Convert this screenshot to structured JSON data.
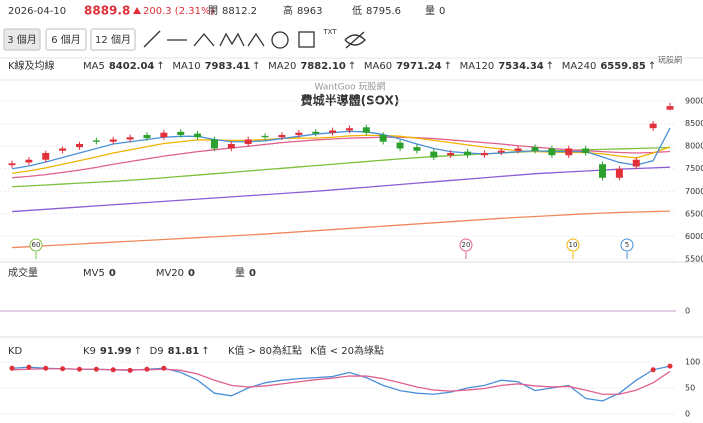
{
  "header": {
    "date": "2026-04-10",
    "price": "8889.8",
    "change": "200.3 (2.31%)",
    "open_label": "開",
    "open": "8812.2",
    "high_label": "高",
    "high": "8963",
    "low_label": "低",
    "low": "8795.6",
    "volume_label": "量",
    "volume": "0"
  },
  "toolbar": {
    "ranges": [
      "3 個月",
      "6 個月",
      "12 個月"
    ],
    "txt": "TXT",
    "logo": "玩股網"
  },
  "chart_data": [
    {
      "type": "candlestick",
      "legend_title": "K線及均線",
      "watermark": "WantGoo 玩股網",
      "title": "費城半導體(SOX)",
      "open": [
        7580,
        7640,
        7700,
        7900,
        7980,
        8130,
        8100,
        8150,
        8250,
        8200,
        8320,
        8280,
        8150,
        7950,
        8050,
        8230,
        8200,
        8250,
        8320,
        8300,
        8350,
        8420,
        8250,
        8080,
        7980,
        7880,
        7800,
        7880,
        7800,
        7860,
        7900,
        7980,
        7950,
        7800,
        7950,
        7600,
        7300,
        7550,
        8400,
        8812.2
      ],
      "high": [
        7680,
        7760,
        7900,
        8000,
        8100,
        8190,
        8210,
        8260,
        8310,
        8360,
        8380,
        8340,
        8210,
        8110,
        8210,
        8290,
        8310,
        8360,
        8380,
        8410,
        8460,
        8480,
        8310,
        8140,
        8040,
        7940,
        7910,
        7940,
        7910,
        7960,
        8010,
        8040,
        8010,
        8010,
        8010,
        7660,
        7560,
        7760,
        8560,
        8963
      ],
      "low": [
        7520,
        7580,
        7640,
        7840,
        7920,
        8040,
        8040,
        8090,
        8120,
        8140,
        8190,
        8140,
        7890,
        7890,
        7990,
        8140,
        8140,
        8190,
        8220,
        8240,
        8290,
        8240,
        8040,
        7890,
        7840,
        7690,
        7740,
        7740,
        7740,
        7800,
        7840,
        7840,
        7740,
        7740,
        7790,
        7240,
        7240,
        7490,
        8340,
        8795.6
      ],
      "close": [
        7620,
        7700,
        7850,
        7950,
        8050,
        8100,
        8150,
        8200,
        8180,
        8300,
        8250,
        8200,
        7950,
        8050,
        8150,
        8200,
        8250,
        8300,
        8280,
        8350,
        8400,
        8300,
        8100,
        7950,
        7900,
        7750,
        7850,
        7800,
        7850,
        7900,
        7950,
        7900,
        7800,
        7950,
        7850,
        7300,
        7500,
        7700,
        8500,
        8889.8
      ],
      "up_color": "#e0303a",
      "down_color": "#2ca02c",
      "series": [
        {
          "name": "MA5",
          "color": "#4a90d9",
          "last_label": "8402.04",
          "values": [
            7500,
            7560,
            7650,
            7750,
            7850,
            7950,
            8050,
            8100,
            8150,
            8200,
            8220,
            8220,
            8150,
            8100,
            8100,
            8120,
            8170,
            8220,
            8270,
            8300,
            8330,
            8320,
            8260,
            8160,
            8050,
            7950,
            7880,
            7850,
            7830,
            7850,
            7880,
            7900,
            7880,
            7880,
            7880,
            7760,
            7640,
            7580,
            7680,
            8402.04
          ]
        },
        {
          "name": "MA10",
          "color": "#f0b400",
          "last_label": "7983.41",
          "values": [
            7400,
            7450,
            7520,
            7600,
            7680,
            7760,
            7850,
            7920,
            7990,
            8060,
            8100,
            8140,
            8140,
            8130,
            8130,
            8150,
            8170,
            8180,
            8180,
            8200,
            8230,
            8240,
            8240,
            8220,
            8180,
            8130,
            8080,
            8030,
            7980,
            7940,
            7900,
            7880,
            7870,
            7860,
            7860,
            7830,
            7780,
            7740,
            7850,
            7983.41
          ]
        },
        {
          "name": "MA20",
          "color": "#e06090",
          "last_label": "7882.10",
          "values": [
            7300,
            7330,
            7370,
            7420,
            7470,
            7530,
            7600,
            7660,
            7720,
            7780,
            7830,
            7880,
            7920,
            7960,
            8000,
            8040,
            8080,
            8110,
            8140,
            8160,
            8180,
            8190,
            8200,
            8200,
            8190,
            8170,
            8140,
            8110,
            8080,
            8050,
            8010,
            7980,
            7950,
            7920,
            7900,
            7880,
            7860,
            7850,
            7860,
            7882.1
          ]
        },
        {
          "name": "MA60",
          "color": "#7cc03c",
          "last_label": "7971.24",
          "values": [
            7100,
            7120,
            7140,
            7160,
            7180,
            7200,
            7220,
            7245,
            7270,
            7300,
            7330,
            7360,
            7390,
            7420,
            7450,
            7480,
            7510,
            7540,
            7570,
            7600,
            7630,
            7660,
            7690,
            7720,
            7745,
            7770,
            7790,
            7810,
            7830,
            7850,
            7870,
            7885,
            7900,
            7910,
            7920,
            7930,
            7940,
            7950,
            7960,
            7971.24
          ]
        },
        {
          "name": "MA120",
          "color": "#8a5fd6",
          "last_label": "7534.34",
          "values": [
            6550,
            6575,
            6600,
            6625,
            6650,
            6675,
            6700,
            6725,
            6750,
            6775,
            6800,
            6825,
            6850,
            6875,
            6900,
            6925,
            6950,
            6975,
            7000,
            7030,
            7060,
            7090,
            7120,
            7150,
            7180,
            7210,
            7240,
            7270,
            7300,
            7330,
            7360,
            7390,
            7410,
            7430,
            7450,
            7470,
            7490,
            7505,
            7520,
            7534.34
          ]
        },
        {
          "name": "MA240",
          "color": "#f08a5d",
          "last_label": "6559.85",
          "values": [
            5750,
            5770,
            5790,
            5810,
            5830,
            5850,
            5870,
            5890,
            5910,
            5930,
            5950,
            5970,
            5990,
            6010,
            6030,
            6050,
            6075,
            6100,
            6125,
            6150,
            6175,
            6200,
            6225,
            6250,
            6275,
            6300,
            6325,
            6350,
            6375,
            6400,
            6420,
            6440,
            6460,
            6480,
            6500,
            6515,
            6530,
            6540,
            6550,
            6559.85
          ]
        }
      ],
      "markers": [
        {
          "label": "60",
          "color": "#7cc03c"
        },
        {
          "label": "20",
          "color": "#e06090"
        },
        {
          "label": "10",
          "color": "#f0b400"
        },
        {
          "label": "5",
          "color": "#4a90d9"
        }
      ],
      "ylim": [
        5430,
        9470
      ],
      "yticks": [
        5500,
        6000,
        6500,
        7000,
        7500,
        8000,
        8500,
        9000
      ],
      "grid": true
    },
    {
      "type": "volume",
      "title": "成交量",
      "series": [
        {
          "name": "MV5",
          "color": "#4a90d9",
          "last_label": "0"
        },
        {
          "name": "MV20",
          "color": "#e06090",
          "last_label": "0"
        },
        {
          "name": "量",
          "color": "#333",
          "last_label": "0"
        }
      ],
      "ylim": [
        0,
        1
      ],
      "yticks": [
        0
      ]
    },
    {
      "type": "kd",
      "title": "KD",
      "notes": [
        "K值 > 80為紅點",
        "K值 < 20為綠點"
      ],
      "series": [
        {
          "name": "K9",
          "color": "#4a90d9",
          "values": [
            88,
            90,
            88,
            87,
            86,
            86,
            85,
            84,
            86,
            88,
            80,
            65,
            40,
            35,
            50,
            60,
            65,
            68,
            70,
            72,
            80,
            70,
            55,
            45,
            40,
            38,
            42,
            50,
            55,
            65,
            62,
            45,
            50,
            55,
            30,
            25,
            40,
            65,
            85,
            91.99
          ]
        },
        {
          "name": "D9",
          "color": "#e06090",
          "values": [
            85,
            86,
            87,
            87,
            86,
            86,
            85,
            85,
            85,
            86,
            84,
            77,
            65,
            55,
            52,
            54,
            58,
            62,
            66,
            69,
            73,
            73,
            68,
            60,
            52,
            46,
            44,
            46,
            49,
            55,
            58,
            54,
            52,
            53,
            46,
            38,
            38,
            46,
            60,
            81.81
          ]
        }
      ],
      "dot_color": "#e0303a",
      "dot_above": 80,
      "ylim": [
        0,
        100
      ],
      "yticks": [
        0,
        50,
        100
      ]
    }
  ]
}
